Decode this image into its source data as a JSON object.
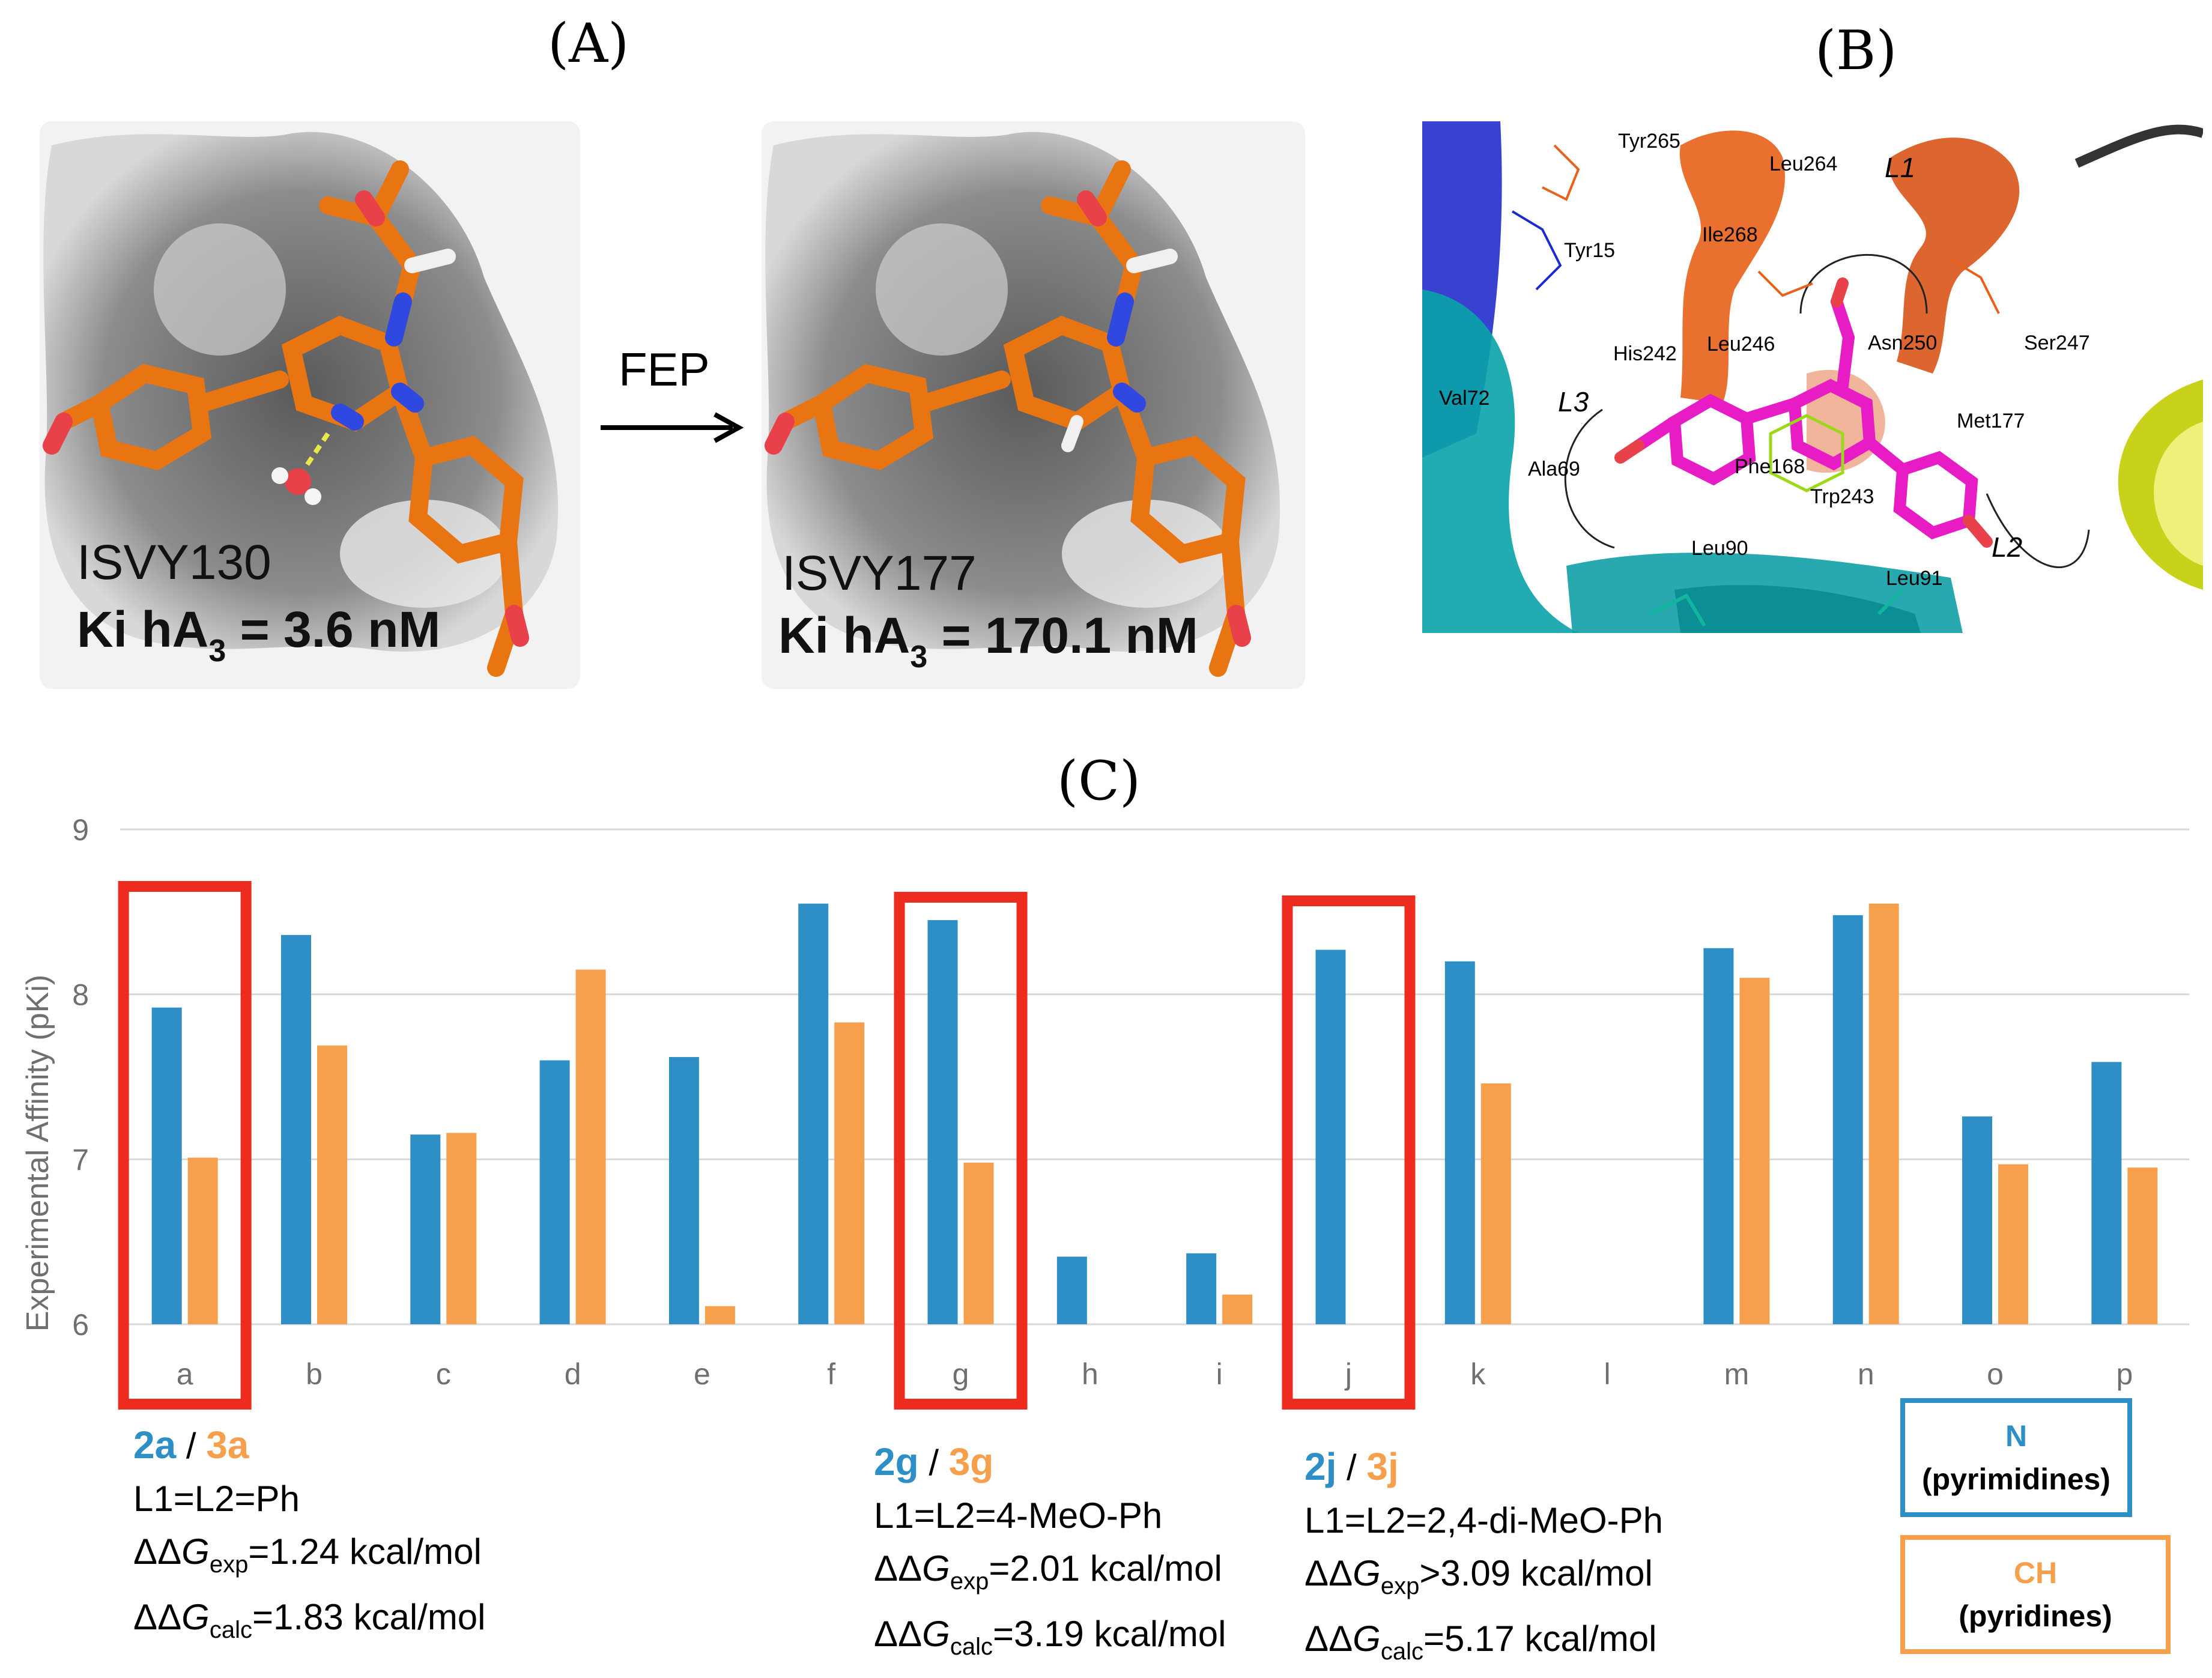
{
  "panels": {
    "a_label": "(A)",
    "b_label": "(B)",
    "c_label": "(C)"
  },
  "panel_a": {
    "left_compound": "ISVY130",
    "left_ki_prefix": "Ki hA",
    "left_ki_sub": "3",
    "left_ki_value": "=  3.6 nM",
    "right_compound": "ISVY177",
    "right_ki_prefix": "Ki hA",
    "right_ki_sub": "3",
    "right_ki_value": "=  170.1 nM",
    "arrow_label": "FEP"
  },
  "panel_b": {
    "residues": [
      "Tyr265",
      "Leu264",
      "Ile268",
      "Tyr15",
      "His242",
      "Leu246",
      "Asn250",
      "Ser247",
      "Val72",
      "Met177",
      "Ala69",
      "Phe168",
      "Trp243",
      "Leu90",
      "Leu91"
    ],
    "loops": [
      "L1",
      "L2",
      "L3"
    ]
  },
  "chart_data": {
    "type": "bar",
    "ylabel": "Experimental Affinity (pKi)",
    "ylim": [
      6,
      9
    ],
    "yticks": [
      "6",
      "7",
      "8",
      "9"
    ],
    "categories": [
      "a",
      "b",
      "c",
      "d",
      "e",
      "f",
      "g",
      "h",
      "i",
      "j",
      "k",
      "l",
      "m",
      "n",
      "o",
      "p"
    ],
    "series": [
      {
        "name": "N (pyrimidines)",
        "color": "#2E8EC6",
        "values": [
          7.92,
          8.36,
          7.15,
          7.6,
          7.62,
          8.55,
          8.45,
          6.41,
          6.43,
          8.27,
          8.2,
          null,
          8.28,
          8.48,
          7.26,
          7.59
        ]
      },
      {
        "name": "CH (pyridines)",
        "color": "#F6A04D",
        "values": [
          7.01,
          7.69,
          7.16,
          8.15,
          6.11,
          7.83,
          6.98,
          null,
          6.18,
          null,
          7.46,
          null,
          8.1,
          8.55,
          6.97,
          6.95
        ]
      }
    ],
    "highlighted": [
      "a",
      "g",
      "j"
    ],
    "highlight_color": "#EE2B1F",
    "gridlines": true
  },
  "annotations": [
    {
      "pair_n": "2a",
      "pair_ch": "3a",
      "sep": " / ",
      "line1": "L1=L2=Ph",
      "ddg": "ΔΔ",
      "g": "G",
      "exp_sub": "exp",
      "calc_sub": "calc",
      "exp_value": "=1.24 kcal/mol",
      "calc_value": "=1.83 kcal/mol"
    },
    {
      "pair_n": "2g",
      "pair_ch": "3g",
      "sep": " / ",
      "line1": "L1=L2=4-MeO-Ph",
      "ddg": "ΔΔ",
      "g": "G",
      "exp_sub": "exp",
      "calc_sub": "calc",
      "exp_value": "=2.01 kcal/mol",
      "calc_value": "=3.19 kcal/mol"
    },
    {
      "pair_n": "2j",
      "pair_ch": "3j",
      "sep": " / ",
      "line1": "L1=L2=2,4-di-MeO-Ph",
      "ddg": "ΔΔ",
      "g": "G",
      "exp_sub": "exp",
      "calc_sub": "calc",
      "exp_value": ">3.09 kcal/mol",
      "calc_value": "=5.17 kcal/mol"
    }
  ],
  "legend": {
    "n_title": "N",
    "n_sub": "(pyrimidines)",
    "ch_title": "CH",
    "ch_sub": "(pyridines)"
  }
}
